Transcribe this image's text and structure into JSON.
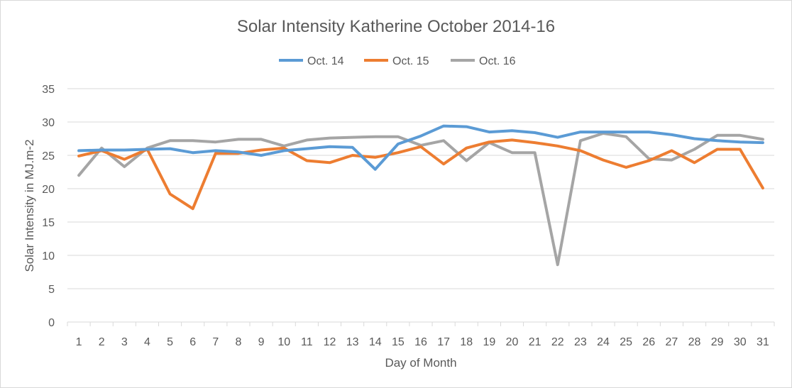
{
  "chart_data": {
    "type": "line",
    "title": "Solar Intensity Katherine October 2014-16",
    "xlabel": "Day of Month",
    "ylabel": "Solar Intensity in MJ.m-2",
    "ylim": [
      0,
      35
    ],
    "yticks": [
      0,
      5,
      10,
      15,
      20,
      25,
      30,
      35
    ],
    "grid": true,
    "legend_position": "top",
    "categories": [
      "1",
      "2",
      "3",
      "4",
      "5",
      "6",
      "7",
      "8",
      "9",
      "10",
      "11",
      "12",
      "13",
      "14",
      "15",
      "16",
      "17",
      "18",
      "19",
      "20",
      "21",
      "22",
      "23",
      "24",
      "25",
      "26",
      "27",
      "28",
      "29",
      "30",
      "31"
    ],
    "series": [
      {
        "name": "Oct. 14",
        "color": "#5B9BD5",
        "values": [
          25.7,
          25.8,
          25.8,
          25.9,
          26.0,
          25.4,
          25.7,
          25.5,
          25.0,
          25.7,
          26.0,
          26.3,
          26.2,
          22.9,
          26.7,
          27.9,
          29.4,
          29.3,
          28.5,
          28.7,
          28.4,
          27.7,
          28.5,
          28.5,
          28.5,
          28.5,
          28.1,
          27.5,
          27.2,
          27.0,
          26.9
        ]
      },
      {
        "name": "Oct. 15",
        "color": "#ED7D31",
        "values": [
          24.9,
          25.7,
          24.4,
          25.9,
          19.2,
          17.0,
          25.3,
          25.3,
          25.8,
          26.1,
          24.2,
          23.9,
          25.0,
          24.7,
          25.4,
          26.3,
          23.7,
          26.1,
          27.0,
          27.3,
          26.9,
          26.4,
          25.7,
          24.3,
          23.2,
          24.2,
          25.7,
          23.9,
          25.9,
          25.9,
          20.1
        ]
      },
      {
        "name": "Oct. 16",
        "color": "#A5A5A5",
        "values": [
          22.0,
          26.1,
          23.3,
          26.1,
          27.2,
          27.2,
          27.0,
          27.4,
          27.4,
          26.4,
          27.3,
          27.6,
          27.7,
          27.8,
          27.8,
          26.5,
          27.2,
          24.2,
          26.9,
          25.4,
          25.4,
          8.6,
          27.2,
          28.3,
          27.8,
          24.5,
          24.3,
          25.9,
          28.0,
          28.0,
          27.4
        ]
      }
    ]
  }
}
